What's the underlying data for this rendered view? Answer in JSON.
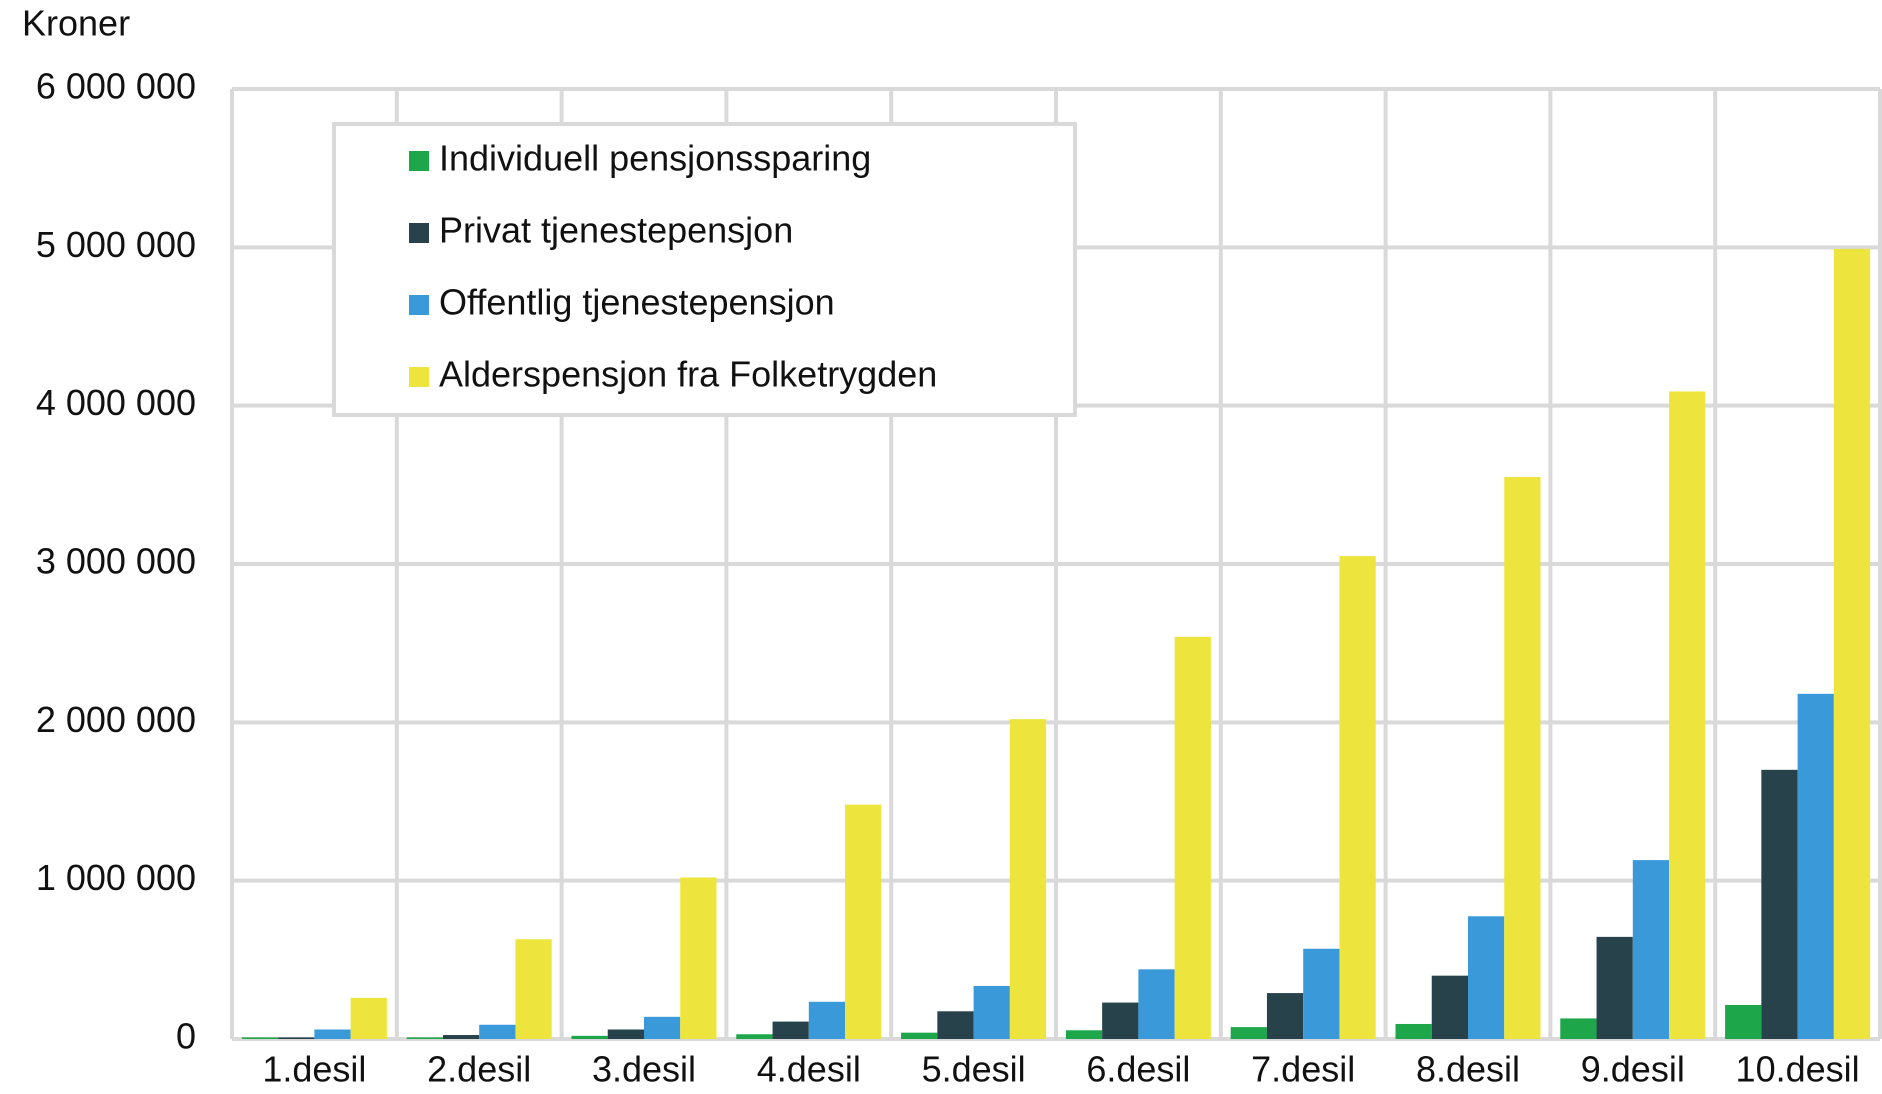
{
  "chart_data": {
    "type": "bar",
    "y_label": "Kroner",
    "categories": [
      "1.desil",
      "2.desil",
      "3.desil",
      "4.desil",
      "5.desil",
      "6.desil",
      "7.desil",
      "8.desil",
      "9.desil",
      "10.desil"
    ],
    "series": [
      {
        "name": "Individuell pensjonssparing",
        "color": "#1ea64a",
        "values": [
          10000,
          10000,
          20000,
          30000,
          40000,
          55000,
          75000,
          95000,
          130000,
          215000
        ]
      },
      {
        "name": "Privat tjenestepensjon",
        "color": "#27424a",
        "values": [
          10000,
          25000,
          60000,
          110000,
          175000,
          230000,
          290000,
          400000,
          645000,
          1700000
        ]
      },
      {
        "name": "Offentlig tjenestepensjon",
        "color": "#3a9ad9",
        "values": [
          60000,
          90000,
          140000,
          235000,
          335000,
          440000,
          570000,
          775000,
          1130000,
          2180000
        ]
      },
      {
        "name": "Alderspensjon fra Folketrygden",
        "color": "#ede53d",
        "values": [
          260000,
          630000,
          1020000,
          1480000,
          2020000,
          2540000,
          3050000,
          3550000,
          4090000,
          4990000
        ]
      }
    ],
    "ylim": [
      0,
      6000000
    ],
    "yticks": [
      0,
      {
        "value": 1000000,
        "label": "1 000 000"
      },
      {
        "value": 2000000,
        "label": "2 000 000"
      },
      {
        "value": 3000000,
        "label": "3 000 000"
      },
      {
        "value": 4000000,
        "label": "4 000 000"
      },
      {
        "value": 5000000,
        "label": "5 000 000"
      },
      {
        "value": 6000000,
        "label": "6 000 000"
      }
    ],
    "grid": true,
    "legend": "upper left"
  }
}
